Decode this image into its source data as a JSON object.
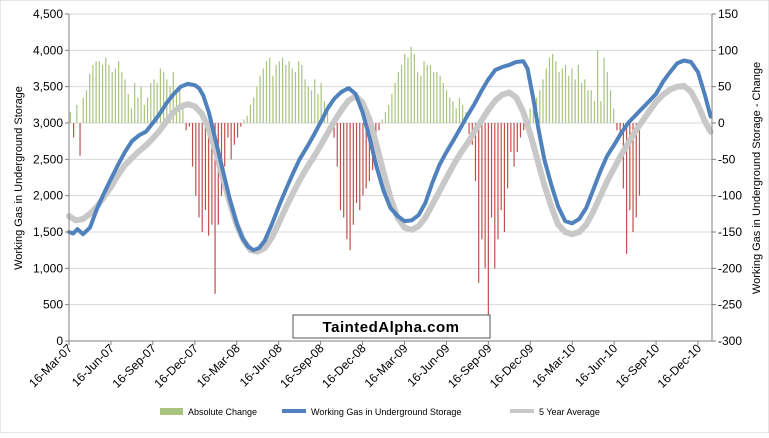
{
  "chart_data": {
    "type": "bar+line",
    "title": "",
    "ylabel_left": "Working Gas in Underground Storage",
    "ylabel_right": "Working Gas in Underground Storage - Change",
    "ylim_left": [
      0,
      4500
    ],
    "ylim_right": [
      -300,
      150
    ],
    "yticks_left": [
      "0",
      "500",
      "1,000",
      "1,500",
      "2,000",
      "2,500",
      "3,000",
      "3,500",
      "4,000",
      "4,500"
    ],
    "yticks_right": [
      "-300",
      "-250",
      "-200",
      "-150",
      "-100",
      "-50",
      "0",
      "50",
      "100",
      "150"
    ],
    "x_range_months": [
      0,
      46
    ],
    "x_ticks": [
      {
        "label": "16-Mar-07",
        "month": 0
      },
      {
        "label": "16-Jun-07",
        "month": 3
      },
      {
        "label": "16-Sep-07",
        "month": 6
      },
      {
        "label": "16-Dec-07",
        "month": 9
      },
      {
        "label": "16-Mar-08",
        "month": 12
      },
      {
        "label": "16-Jun-08",
        "month": 15
      },
      {
        "label": "16-Sep-08",
        "month": 18
      },
      {
        "label": "16-Dec-08",
        "month": 21
      },
      {
        "label": "16-Mar-09",
        "month": 24
      },
      {
        "label": "16-Jun-09",
        "month": 27
      },
      {
        "label": "16-Sep-09",
        "month": 30
      },
      {
        "label": "16-Dec-09",
        "month": 33
      },
      {
        "label": "16-Mar-10",
        "month": 36
      },
      {
        "label": "16-Jun-10",
        "month": 39
      },
      {
        "label": "16-Sep-10",
        "month": 42
      },
      {
        "label": "16-Dec-10",
        "month": 45
      }
    ],
    "series": [
      {
        "name": "Absolute Change",
        "kind": "bar",
        "axis": "right",
        "color": "#a9c47f",
        "negative_color": "#c0504d",
        "month_step": 0.23,
        "values": [
          15,
          -20,
          25,
          -45,
          35,
          45,
          68,
          80,
          85,
          85,
          80,
          90,
          80,
          70,
          75,
          85,
          70,
          60,
          40,
          20,
          55,
          35,
          50,
          25,
          35,
          55,
          60,
          55,
          75,
          70,
          60,
          50,
          70,
          40,
          45,
          20,
          -10,
          -5,
          -60,
          -100,
          -130,
          -150,
          -120,
          -155,
          -140,
          -235,
          -140,
          -100,
          -60,
          -20,
          -50,
          -30,
          -20,
          -5,
          5,
          10,
          25,
          35,
          50,
          65,
          75,
          85,
          90,
          65,
          80,
          85,
          90,
          80,
          85,
          75,
          70,
          85,
          80,
          60,
          50,
          45,
          60,
          40,
          55,
          30,
          25,
          -10,
          -20,
          -60,
          -120,
          -130,
          -160,
          -175,
          -140,
          -110,
          -120,
          -100,
          -90,
          -80,
          -65,
          -30,
          -10,
          5,
          15,
          25,
          40,
          55,
          70,
          80,
          95,
          90,
          105,
          95,
          70,
          65,
          85,
          80,
          80,
          70,
          70,
          65,
          55,
          45,
          35,
          30,
          20,
          35,
          25,
          15,
          -15,
          -30,
          -80,
          -220,
          -160,
          -200,
          -270,
          -130,
          -200,
          -160,
          -120,
          -150,
          -90,
          -40,
          -60,
          -40,
          -20,
          -10,
          10,
          20,
          25,
          35,
          45,
          60,
          75,
          90,
          95,
          85,
          70,
          75,
          80,
          65,
          75,
          60,
          80,
          55,
          60,
          45,
          45,
          30,
          100,
          30,
          90,
          70,
          45,
          20,
          -10,
          -20,
          -90,
          -180,
          -120,
          -150,
          -130,
          -100
        ]
      },
      {
        "name": "Working Gas in Underground Storage",
        "kind": "line",
        "axis": "left",
        "color": "#4f81bd",
        "points": [
          [
            0,
            1500
          ],
          [
            0.3,
            1480
          ],
          [
            0.6,
            1540
          ],
          [
            1.0,
            1470
          ],
          [
            1.5,
            1560
          ],
          [
            2.0,
            1820
          ],
          [
            2.5,
            2030
          ],
          [
            3.0,
            2230
          ],
          [
            3.5,
            2420
          ],
          [
            4.0,
            2600
          ],
          [
            4.5,
            2750
          ],
          [
            5.0,
            2830
          ],
          [
            5.5,
            2880
          ],
          [
            6.0,
            3000
          ],
          [
            6.5,
            3130
          ],
          [
            7.0,
            3280
          ],
          [
            7.5,
            3400
          ],
          [
            8.0,
            3500
          ],
          [
            8.5,
            3540
          ],
          [
            9.0,
            3520
          ],
          [
            9.3,
            3480
          ],
          [
            9.6,
            3380
          ],
          [
            10.0,
            3150
          ],
          [
            10.5,
            2750
          ],
          [
            11.0,
            2350
          ],
          [
            11.5,
            1950
          ],
          [
            12.0,
            1620
          ],
          [
            12.4,
            1420
          ],
          [
            12.8,
            1300
          ],
          [
            13.2,
            1250
          ],
          [
            13.6,
            1280
          ],
          [
            14.0,
            1380
          ],
          [
            14.5,
            1600
          ],
          [
            15.0,
            1850
          ],
          [
            15.5,
            2080
          ],
          [
            16.0,
            2300
          ],
          [
            16.5,
            2500
          ],
          [
            17.0,
            2660
          ],
          [
            17.5,
            2830
          ],
          [
            18.0,
            3010
          ],
          [
            18.5,
            3200
          ],
          [
            19.0,
            3340
          ],
          [
            19.5,
            3430
          ],
          [
            20.0,
            3480
          ],
          [
            20.5,
            3400
          ],
          [
            21.0,
            3150
          ],
          [
            21.5,
            2800
          ],
          [
            22.0,
            2400
          ],
          [
            22.5,
            2070
          ],
          [
            23.0,
            1830
          ],
          [
            23.5,
            1720
          ],
          [
            24.0,
            1650
          ],
          [
            24.5,
            1660
          ],
          [
            25.0,
            1730
          ],
          [
            25.5,
            1900
          ],
          [
            26.0,
            2180
          ],
          [
            26.5,
            2420
          ],
          [
            27.0,
            2600
          ],
          [
            27.5,
            2760
          ],
          [
            28.0,
            2930
          ],
          [
            28.5,
            3100
          ],
          [
            29.0,
            3260
          ],
          [
            29.5,
            3440
          ],
          [
            30.0,
            3600
          ],
          [
            30.5,
            3730
          ],
          [
            31.0,
            3770
          ],
          [
            31.5,
            3800
          ],
          [
            32.0,
            3840
          ],
          [
            32.5,
            3850
          ],
          [
            32.8,
            3750
          ],
          [
            33.2,
            3350
          ],
          [
            33.6,
            2900
          ],
          [
            34.0,
            2500
          ],
          [
            34.5,
            2150
          ],
          [
            35.0,
            1850
          ],
          [
            35.5,
            1650
          ],
          [
            36.0,
            1620
          ],
          [
            36.5,
            1680
          ],
          [
            37.0,
            1830
          ],
          [
            37.5,
            2080
          ],
          [
            38.0,
            2330
          ],
          [
            38.5,
            2550
          ],
          [
            39.0,
            2700
          ],
          [
            39.5,
            2860
          ],
          [
            40.0,
            3000
          ],
          [
            40.5,
            3100
          ],
          [
            41.0,
            3200
          ],
          [
            41.5,
            3300
          ],
          [
            42.0,
            3400
          ],
          [
            42.5,
            3570
          ],
          [
            43.0,
            3700
          ],
          [
            43.5,
            3820
          ],
          [
            44.0,
            3860
          ],
          [
            44.5,
            3840
          ],
          [
            45.0,
            3700
          ],
          [
            45.5,
            3380
          ],
          [
            45.9,
            3090
          ]
        ]
      },
      {
        "name": "5 Year Average",
        "kind": "line",
        "axis": "left",
        "color": "#c8c8c8",
        "points": [
          [
            0,
            1720
          ],
          [
            0.5,
            1660
          ],
          [
            1.0,
            1680
          ],
          [
            1.5,
            1750
          ],
          [
            2.0,
            1850
          ],
          [
            2.5,
            1980
          ],
          [
            3.0,
            2120
          ],
          [
            3.5,
            2280
          ],
          [
            4.0,
            2420
          ],
          [
            4.5,
            2520
          ],
          [
            5.0,
            2610
          ],
          [
            5.5,
            2690
          ],
          [
            6.0,
            2790
          ],
          [
            6.5,
            2900
          ],
          [
            7.0,
            3030
          ],
          [
            7.5,
            3150
          ],
          [
            8.0,
            3230
          ],
          [
            8.5,
            3260
          ],
          [
            9.0,
            3230
          ],
          [
            9.5,
            3130
          ],
          [
            10.0,
            2920
          ],
          [
            10.5,
            2600
          ],
          [
            11.0,
            2250
          ],
          [
            11.5,
            1900
          ],
          [
            12.0,
            1600
          ],
          [
            12.5,
            1380
          ],
          [
            13.0,
            1250
          ],
          [
            13.5,
            1230
          ],
          [
            14.0,
            1280
          ],
          [
            14.5,
            1420
          ],
          [
            15.0,
            1620
          ],
          [
            15.5,
            1830
          ],
          [
            16.0,
            2030
          ],
          [
            16.5,
            2210
          ],
          [
            17.0,
            2380
          ],
          [
            17.5,
            2530
          ],
          [
            18.0,
            2690
          ],
          [
            18.5,
            2860
          ],
          [
            19.0,
            3030
          ],
          [
            19.5,
            3180
          ],
          [
            20.0,
            3310
          ],
          [
            20.5,
            3370
          ],
          [
            21.0,
            3280
          ],
          [
            21.5,
            3050
          ],
          [
            22.0,
            2700
          ],
          [
            22.5,
            2320
          ],
          [
            23.0,
            1970
          ],
          [
            23.5,
            1700
          ],
          [
            24.0,
            1560
          ],
          [
            24.5,
            1530
          ],
          [
            25.0,
            1580
          ],
          [
            25.5,
            1700
          ],
          [
            26.0,
            1880
          ],
          [
            26.5,
            2060
          ],
          [
            27.0,
            2240
          ],
          [
            27.5,
            2420
          ],
          [
            28.0,
            2580
          ],
          [
            28.5,
            2720
          ],
          [
            29.0,
            2880
          ],
          [
            29.5,
            3030
          ],
          [
            30.0,
            3180
          ],
          [
            30.5,
            3310
          ],
          [
            31.0,
            3390
          ],
          [
            31.5,
            3420
          ],
          [
            32.0,
            3350
          ],
          [
            32.5,
            3150
          ],
          [
            33.0,
            2850
          ],
          [
            33.5,
            2500
          ],
          [
            34.0,
            2150
          ],
          [
            34.5,
            1850
          ],
          [
            35.0,
            1600
          ],
          [
            35.5,
            1500
          ],
          [
            36.0,
            1470
          ],
          [
            36.5,
            1500
          ],
          [
            37.0,
            1600
          ],
          [
            37.5,
            1780
          ],
          [
            38.0,
            1990
          ],
          [
            38.5,
            2200
          ],
          [
            39.0,
            2380
          ],
          [
            39.5,
            2560
          ],
          [
            40.0,
            2720
          ],
          [
            40.5,
            2880
          ],
          [
            41.0,
            3020
          ],
          [
            41.5,
            3160
          ],
          [
            42.0,
            3290
          ],
          [
            42.5,
            3390
          ],
          [
            43.0,
            3460
          ],
          [
            43.5,
            3500
          ],
          [
            44.0,
            3510
          ],
          [
            44.5,
            3430
          ],
          [
            45.0,
            3250
          ],
          [
            45.5,
            3020
          ],
          [
            45.9,
            2880
          ]
        ]
      }
    ],
    "legend": {
      "position": "bottom",
      "items": [
        "Absolute Change",
        "Working Gas in Underground Storage",
        "5 Year Average"
      ]
    },
    "watermark": "TaintedAlpha.com",
    "grid": "horizontal"
  }
}
